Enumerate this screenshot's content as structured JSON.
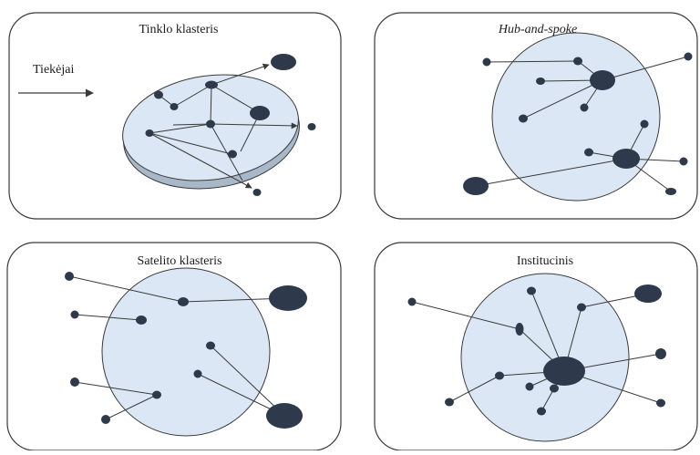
{
  "panels": [
    {
      "id": "network",
      "title": "Tinklo klasteris",
      "title_italic": false,
      "side_label": "Tiekėjai"
    },
    {
      "id": "hub",
      "title": "Hub-and-spoke",
      "title_italic": true
    },
    {
      "id": "satellite",
      "title": "Satelito klasteris",
      "title_italic": false
    },
    {
      "id": "institutional",
      "title": "Institucinis",
      "title_italic": false
    }
  ],
  "colors": {
    "panel_border": "#3a3a3a",
    "cluster_fill": "#dbe7f4",
    "cluster_border": "#3a3a3a",
    "node": "#2e3a4b",
    "edge": "#3a3a3a"
  }
}
